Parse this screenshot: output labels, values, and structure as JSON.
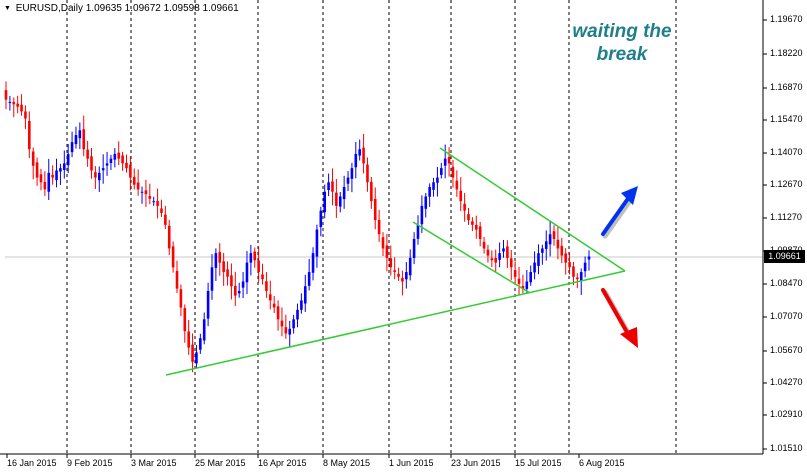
{
  "header": {
    "dropdown_icon": "triangle-down-icon",
    "symbol": "EURUSD,Daily",
    "open": "1.09635",
    "high": "1.09672",
    "low": "1.09598",
    "close": "1.09661"
  },
  "annotation": {
    "line1": "waiting the",
    "line2": "break"
  },
  "current_price": "1.09661",
  "colors": {
    "bull": "#0000ff",
    "bear": "#ff0000",
    "trendline": "#33cc33",
    "annotation": "#1f7f8c"
  },
  "arrows": {
    "up": {
      "icon": "up-arrow-icon",
      "color": "#0033ee"
    },
    "down": {
      "icon": "down-arrow-icon",
      "color": "#ee0000"
    }
  },
  "chart_data": {
    "type": "candlestick",
    "y_ticks": [
      "1.19670",
      "1.18220",
      "1.16870",
      "1.15470",
      "1.14070",
      "1.12670",
      "1.11270",
      "1.09870",
      "1.08470",
      "1.07070",
      "1.05670",
      "1.04270",
      "1.02910",
      "1.01510"
    ],
    "x_ticks": [
      "16 Jan 2015",
      "9 Feb 2015",
      "3 Mar 2015",
      "25 Mar 2015",
      "16 Apr 2015",
      "8 May 2015",
      "1 Jun 2015",
      "23 Jun 2015",
      "15 Jul 2015",
      "6 Aug 2015"
    ],
    "ylim": [
      1.0136,
      1.2024
    ],
    "grid": "vertical dashed",
    "closes": [
      1.163,
      1.162,
      1.161,
      1.16,
      1.158,
      1.155,
      1.142,
      1.135,
      1.13,
      1.128,
      1.125,
      1.132,
      1.13,
      1.133,
      1.134,
      1.136,
      1.14,
      1.145,
      1.148,
      1.15,
      1.142,
      1.138,
      1.133,
      1.13,
      1.132,
      1.134,
      1.136,
      1.138,
      1.14,
      1.138,
      1.136,
      1.134,
      1.13,
      1.127,
      1.125,
      1.124,
      1.123,
      1.121,
      1.12,
      1.118,
      1.115,
      1.11,
      1.1,
      1.092,
      1.083,
      1.075,
      1.065,
      1.058,
      1.052,
      1.056,
      1.062,
      1.07,
      1.082,
      1.092,
      1.098,
      1.094,
      1.09,
      1.088,
      1.084,
      1.08,
      1.082,
      1.086,
      1.094,
      1.098,
      1.095,
      1.09,
      1.087,
      1.082,
      1.078,
      1.075,
      1.07,
      1.067,
      1.064,
      1.066,
      1.07,
      1.074,
      1.078,
      1.084,
      1.09,
      1.098,
      1.108,
      1.116,
      1.124,
      1.128,
      1.124,
      1.118,
      1.122,
      1.126,
      1.13,
      1.134,
      1.14,
      1.142,
      1.136,
      1.128,
      1.12,
      1.112,
      1.106,
      1.1,
      1.096,
      1.092,
      1.09,
      1.088,
      1.086,
      1.09,
      1.096,
      1.104,
      1.11,
      1.118,
      1.122,
      1.126,
      1.128,
      1.13,
      1.134,
      1.138,
      1.136,
      1.13,
      1.125,
      1.12,
      1.116,
      1.112,
      1.11,
      1.108,
      1.104,
      1.1,
      1.097,
      1.095,
      1.094,
      1.098,
      1.1,
      1.096,
      1.092,
      1.088,
      1.085,
      1.083,
      1.086,
      1.09,
      1.094,
      1.098,
      1.1,
      1.103,
      1.106,
      1.104,
      1.1,
      1.097,
      1.094,
      1.092,
      1.088,
      1.087,
      1.09,
      1.094,
      1.0966
    ]
  }
}
